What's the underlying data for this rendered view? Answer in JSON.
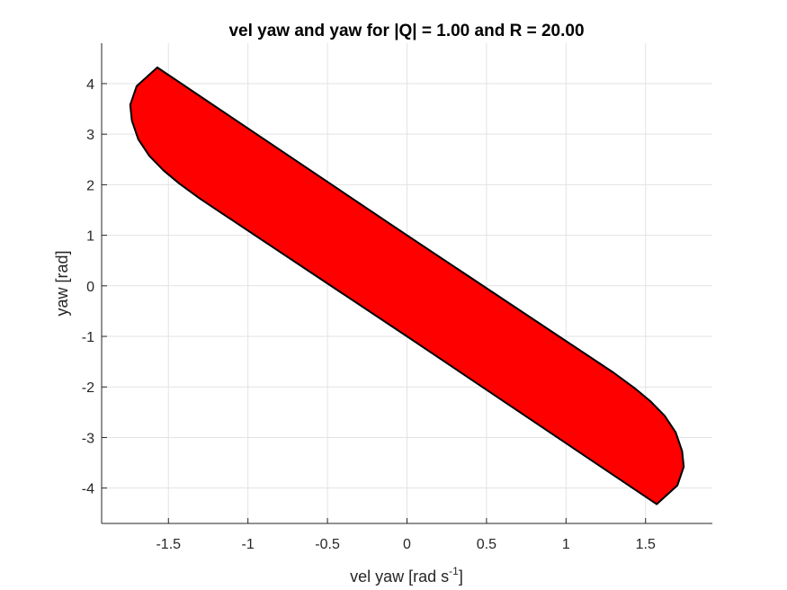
{
  "chart_data": {
    "type": "area",
    "title": "vel yaw and yaw for |Q| = 1.00 and R = 20.00",
    "xlabel_main": "vel yaw [rad s",
    "xlabel_sup": "-1",
    "xlabel_end": "]",
    "ylabel": "yaw [rad]",
    "xlim": [
      -1.92,
      1.92
    ],
    "ylim": [
      -4.7,
      4.8
    ],
    "xticks": [
      -1.5,
      -1,
      -0.5,
      0,
      0.5,
      1,
      1.5
    ],
    "xtick_labels": [
      "-1.5",
      "-1",
      "-0.5",
      "0",
      "0.5",
      "1",
      "1.5"
    ],
    "yticks": [
      4,
      3,
      2,
      1,
      0,
      -1,
      -2,
      -3,
      -4
    ],
    "ytick_labels": [
      "4",
      "3",
      "2",
      "1",
      "0",
      "-1",
      "-2",
      "-3",
      "-4"
    ],
    "grid": true,
    "fill_color": "#ff0000",
    "edge_color": "#000000",
    "series": [
      {
        "polygon": [
          [
            -1.57,
            4.32
          ],
          [
            0.0,
            1.0
          ],
          [
            1.3,
            -1.72
          ],
          [
            1.43,
            -2.02
          ],
          [
            1.53,
            -2.28
          ],
          [
            1.62,
            -2.57
          ],
          [
            1.69,
            -2.9
          ],
          [
            1.73,
            -3.27
          ],
          [
            1.74,
            -3.58
          ],
          [
            1.7,
            -3.95
          ],
          [
            1.57,
            -4.32
          ],
          [
            0.0,
            -1.0
          ],
          [
            -1.3,
            1.72
          ],
          [
            -1.43,
            2.02
          ],
          [
            -1.53,
            2.28
          ],
          [
            -1.62,
            2.57
          ],
          [
            -1.69,
            2.9
          ],
          [
            -1.73,
            3.27
          ],
          [
            -1.74,
            3.58
          ],
          [
            -1.7,
            3.95
          ]
        ]
      }
    ]
  }
}
